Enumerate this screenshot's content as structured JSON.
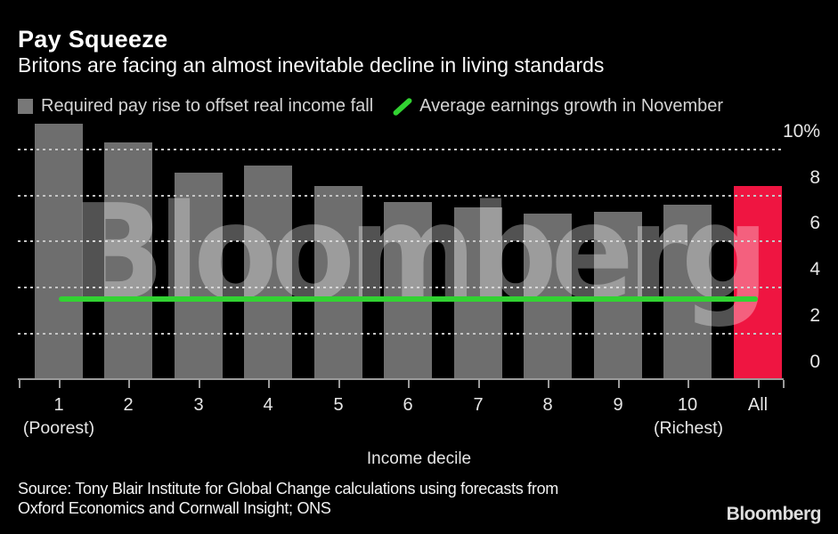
{
  "header": {
    "title": "Pay Squeeze",
    "subtitle": "Britons are facing an almost inevitable decline in living standards"
  },
  "legend": {
    "items": [
      {
        "label": "Required pay rise to offset real income fall",
        "marker": "gray-square-icon",
        "color": "#787878"
      },
      {
        "label": "Average earnings growth in November",
        "marker": "green-slash-icon",
        "color": "#32d232"
      }
    ]
  },
  "chart_data": {
    "type": "bar",
    "title": "Pay Squeeze",
    "xlabel": "Income decile",
    "ylabel": "",
    "yunit": "%",
    "ylim": [
      0,
      11.4
    ],
    "yticks": [
      0,
      2,
      4,
      6,
      8,
      10
    ],
    "ytick_labels": [
      "0",
      "2",
      "4",
      "6",
      "8",
      "10%"
    ],
    "grid": "dashed-horizontal",
    "legend_position": "top",
    "categories": [
      "1",
      "2",
      "3",
      "4",
      "5",
      "6",
      "7",
      "8",
      "9",
      "10",
      "All"
    ],
    "sublabels": [
      {
        "index": 0,
        "text": "(Poorest)"
      },
      {
        "index": 9,
        "text": "(Richest)"
      }
    ],
    "series": [
      {
        "name": "Required pay rise to offset real income fall",
        "type": "bar",
        "values": [
          11.1,
          10.3,
          9.0,
          9.3,
          8.4,
          7.7,
          7.5,
          7.2,
          7.3,
          7.6,
          8.4
        ]
      },
      {
        "name": "Average earnings growth in November",
        "type": "line",
        "value": 3.5
      }
    ],
    "highlight_index": 10,
    "bar_color": "#6e6e6e",
    "highlight_color": "#ef1541",
    "line_color": "#32d232"
  },
  "watermark": {
    "text": "Bloomberg"
  },
  "source": {
    "line1": "Source: Tony Blair Institute for Global Change calculations using forecasts from",
    "line2": "Oxford Economics and Cornwall Insight; ONS"
  },
  "footer": {
    "logo": "Bloomberg"
  }
}
